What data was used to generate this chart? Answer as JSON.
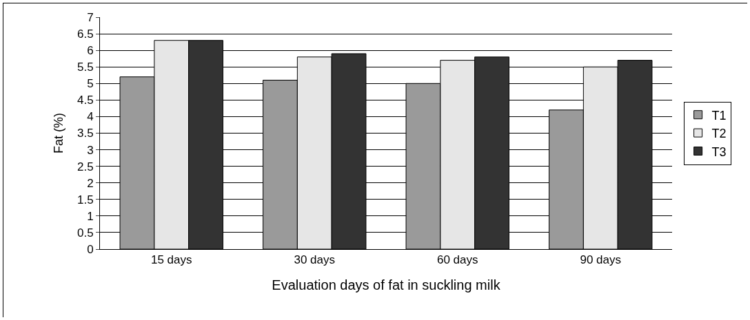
{
  "chart_data": {
    "type": "bar",
    "xlabel": "Evaluation days of fat in suckling milk",
    "ylabel": "Fat (%)",
    "categories": [
      "15 days",
      "30 days",
      "60 days",
      "90 days"
    ],
    "series": [
      {
        "name": "T1",
        "color": "#9a9a9a",
        "values": [
          5.2,
          5.1,
          5.0,
          4.2
        ]
      },
      {
        "name": "T2",
        "color": "#e6e6e6",
        "values": [
          6.3,
          5.8,
          5.7,
          5.5
        ]
      },
      {
        "name": "T3",
        "color": "#333333",
        "values": [
          6.3,
          5.9,
          5.8,
          5.7
        ]
      }
    ],
    "ylim": [
      0,
      7
    ],
    "yticks": [
      0,
      0.5,
      1,
      1.5,
      2,
      2.5,
      3,
      3.5,
      4,
      4.5,
      5,
      5.5,
      6,
      6.5,
      7
    ],
    "grid": "y",
    "legend": "right"
  }
}
